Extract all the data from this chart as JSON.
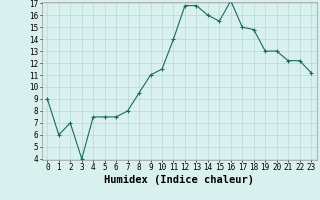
{
  "x": [
    0,
    1,
    2,
    3,
    4,
    5,
    6,
    7,
    8,
    9,
    10,
    11,
    12,
    13,
    14,
    15,
    16,
    17,
    18,
    19,
    20,
    21,
    22,
    23
  ],
  "y": [
    9,
    6,
    7,
    4,
    7.5,
    7.5,
    7.5,
    8,
    9.5,
    11,
    11.5,
    14,
    16.8,
    16.8,
    16,
    15.5,
    17.2,
    15,
    14.8,
    13,
    13,
    12.2,
    12.2,
    11.2
  ],
  "xlabel": "Humidex (Indice chaleur)",
  "ylim": [
    4,
    17
  ],
  "xlim": [
    -0.5,
    23.5
  ],
  "yticks": [
    4,
    5,
    6,
    7,
    8,
    9,
    10,
    11,
    12,
    13,
    14,
    15,
    16,
    17
  ],
  "xticks": [
    0,
    1,
    2,
    3,
    4,
    5,
    6,
    7,
    8,
    9,
    10,
    11,
    12,
    13,
    14,
    15,
    16,
    17,
    18,
    19,
    20,
    21,
    22,
    23
  ],
  "line_color": "#1a6b5a",
  "bg_color": "#d8f0ee",
  "grid_color": "#b8d8d4",
  "tick_fontsize": 5.5,
  "xlabel_fontsize": 7.5
}
